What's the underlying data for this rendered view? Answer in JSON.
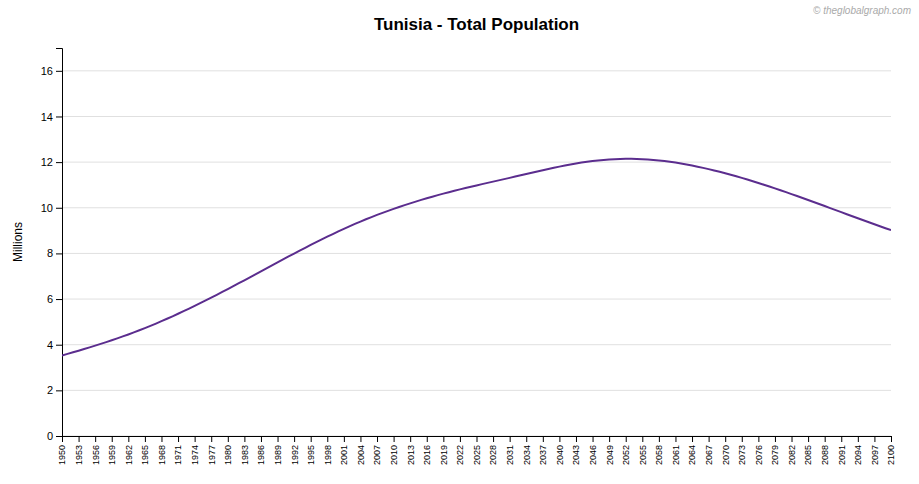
{
  "chart_data": {
    "type": "line",
    "title": "Tunisia - Total Population",
    "ylabel": "Millions",
    "annotations": [
      "© theglobalgraph.com"
    ],
    "color": "#5b2d8e",
    "grid": true,
    "xlim": [
      1950,
      2100
    ],
    "ylim": [
      0,
      17
    ],
    "yticks": [
      0,
      2,
      4,
      6,
      8,
      10,
      12,
      14,
      16
    ],
    "xticks": [
      1950,
      1953,
      1956,
      1959,
      1962,
      1965,
      1968,
      1971,
      1974,
      1977,
      1980,
      1983,
      1986,
      1989,
      1992,
      1995,
      1998,
      2001,
      2004,
      2007,
      2010,
      2013,
      2016,
      2019,
      2022,
      2025,
      2028,
      2031,
      2034,
      2037,
      2040,
      2043,
      2046,
      2049,
      2052,
      2055,
      2058,
      2061,
      2064,
      2067,
      2070,
      2073,
      2076,
      2079,
      2082,
      2085,
      2088,
      2091,
      2094,
      2097,
      2100
    ],
    "x": [
      1950,
      1951,
      1952,
      1953,
      1954,
      1955,
      1956,
      1957,
      1958,
      1959,
      1960,
      1961,
      1962,
      1963,
      1964,
      1965,
      1966,
      1967,
      1968,
      1969,
      1970,
      1971,
      1972,
      1973,
      1974,
      1975,
      1976,
      1977,
      1978,
      1979,
      1980,
      1981,
      1982,
      1983,
      1984,
      1985,
      1986,
      1987,
      1988,
      1989,
      1990,
      1991,
      1992,
      1993,
      1994,
      1995,
      1996,
      1997,
      1998,
      1999,
      2000,
      2001,
      2002,
      2003,
      2004,
      2005,
      2006,
      2007,
      2008,
      2009,
      2010,
      2011,
      2012,
      2013,
      2014,
      2015,
      2016,
      2017,
      2018,
      2019,
      2020,
      2021,
      2022,
      2023,
      2024,
      2025,
      2026,
      2027,
      2028,
      2029,
      2030,
      2031,
      2032,
      2033,
      2034,
      2035,
      2036,
      2037,
      2038,
      2039,
      2040,
      2041,
      2042,
      2043,
      2044,
      2045,
      2046,
      2047,
      2048,
      2049,
      2050,
      2051,
      2052,
      2053,
      2054,
      2055,
      2056,
      2057,
      2058,
      2059,
      2060,
      2061,
      2062,
      2063,
      2064,
      2065,
      2066,
      2067,
      2068,
      2069,
      2070,
      2071,
      2072,
      2073,
      2074,
      2075,
      2076,
      2077,
      2078,
      2079,
      2080,
      2081,
      2082,
      2083,
      2084,
      2085,
      2086,
      2087,
      2088,
      2089,
      2090,
      2091,
      2092,
      2093,
      2094,
      2095,
      2096,
      2097,
      2098,
      2099,
      2100
    ],
    "values": [
      3.53,
      3.597,
      3.666,
      3.737,
      3.81,
      3.884,
      3.96,
      4.037,
      4.115,
      4.196,
      4.278,
      4.363,
      4.45,
      4.54,
      4.633,
      4.728,
      4.826,
      4.927,
      5.031,
      5.137,
      5.245,
      5.356,
      5.469,
      5.584,
      5.701,
      5.82,
      5.94,
      6.062,
      6.186,
      6.311,
      6.437,
      6.564,
      6.693,
      6.823,
      6.953,
      7.084,
      7.214,
      7.345,
      7.475,
      7.605,
      7.735,
      7.865,
      7.993,
      8.12,
      8.245,
      8.37,
      8.493,
      8.613,
      8.732,
      8.849,
      8.964,
      9.076,
      9.185,
      9.292,
      9.395,
      9.496,
      9.592,
      9.686,
      9.777,
      9.865,
      9.951,
      10.034,
      10.115,
      10.194,
      10.27,
      10.344,
      10.416,
      10.486,
      10.554,
      10.62,
      10.683,
      10.745,
      10.806,
      10.865,
      10.923,
      10.979,
      11.035,
      11.09,
      11.145,
      11.2,
      11.255,
      11.31,
      11.366,
      11.421,
      11.477,
      11.533,
      11.589,
      11.644,
      11.698,
      11.751,
      11.802,
      11.851,
      11.897,
      11.94,
      11.979,
      12.015,
      12.047,
      12.075,
      12.098,
      12.117,
      12.131,
      12.14,
      12.145,
      12.145,
      12.14,
      12.13,
      12.116,
      12.097,
      12.074,
      12.047,
      12.015,
      11.98,
      11.94,
      11.897,
      11.851,
      11.801,
      11.748,
      11.693,
      11.635,
      11.574,
      11.511,
      11.445,
      11.378,
      11.308,
      11.236,
      11.162,
      11.086,
      11.009,
      10.93,
      10.849,
      10.767,
      10.683,
      10.599,
      10.513,
      10.427,
      10.34,
      10.252,
      10.164,
      10.075,
      9.986,
      9.897,
      9.807,
      9.718,
      9.629,
      9.54,
      9.451,
      9.363,
      9.276,
      9.19,
      9.104,
      9.02
    ]
  }
}
